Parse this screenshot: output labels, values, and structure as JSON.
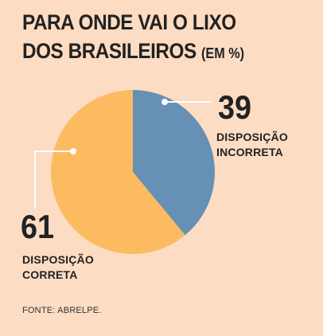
{
  "header": {
    "title_line1": "PARA ONDE VAI O LIXO",
    "title_line2": "DOS BRASILEIROS",
    "title_unit": "(EM %)"
  },
  "chart_data": {
    "type": "pie",
    "title": "PARA ONDE VAI O LIXO DOS BRASILEIROS (EM %)",
    "slices": [
      {
        "label_line1": "DISPOSIÇÃO",
        "label_line2": "INCORRETA",
        "value": 39,
        "value_text": "39",
        "color": "#6690b4"
      },
      {
        "label_line1": "DISPOSIÇÃO",
        "label_line2": "CORRETA",
        "value": 61,
        "value_text": "61",
        "color": "#fdbb61"
      }
    ],
    "start": "12 o'clock",
    "direction": "clockwise",
    "legend": "none",
    "annotation_marker_color": "#ffffff"
  },
  "footer": {
    "source": "FONTE: ABRELPE."
  }
}
